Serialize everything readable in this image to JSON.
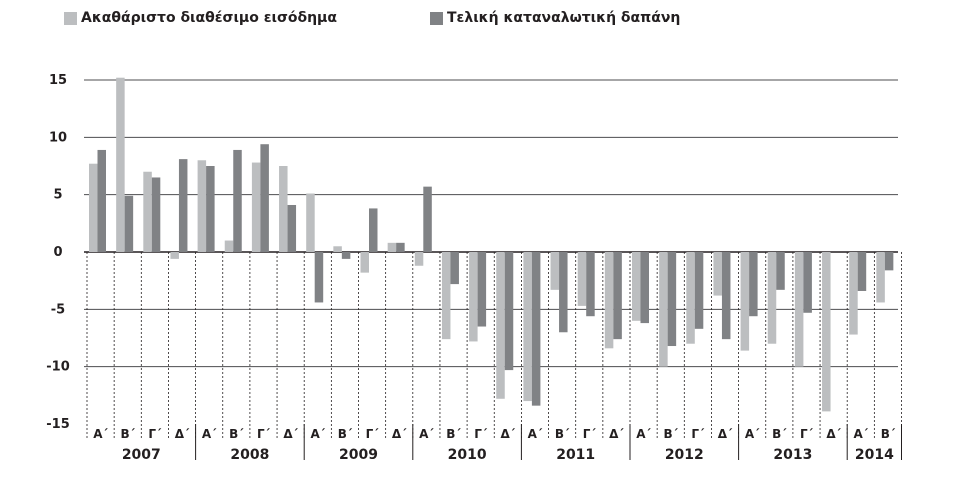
{
  "chart_data": {
    "type": "bar",
    "title": "",
    "xlabel": "",
    "ylabel": "",
    "ylim": [
      -15,
      15
    ],
    "yticks": [
      "15",
      "10",
      "5",
      "0",
      "-5",
      "-10",
      "-15"
    ],
    "grid": true,
    "legend_position": "top-left",
    "quarter_labels": [
      "Α΄",
      "Β΄",
      "Γ΄",
      "Δ΄"
    ],
    "years": [
      "2007",
      "2008",
      "2009",
      "2010",
      "2011",
      "2012",
      "2013",
      "2014"
    ],
    "quarters_per_year": [
      4,
      4,
      4,
      4,
      4,
      4,
      4,
      2
    ],
    "series": [
      {
        "name": "Ακαθάριστο διαθέσιμο εισόδημα",
        "color": "#bcbec0",
        "values": [
          7.7,
          15.2,
          7.0,
          -0.6,
          8.0,
          1.0,
          7.8,
          7.5,
          5.1,
          0.5,
          -1.8,
          0.8,
          -1.2,
          -7.6,
          -7.8,
          -12.8,
          -13.0,
          -3.3,
          -4.7,
          -8.4,
          -6.0,
          -10.0,
          -8.0,
          -3.8,
          -8.6,
          -8.0,
          -10.0,
          -13.9,
          -7.2,
          -4.4
        ]
      },
      {
        "name": "Τελική καταναλωτική δαπάνη",
        "color": "#808285",
        "values": [
          8.9,
          4.9,
          6.5,
          8.1,
          7.5,
          8.9,
          9.4,
          4.1,
          -4.4,
          -0.6,
          3.8,
          0.8,
          5.7,
          -2.8,
          -6.5,
          -10.3,
          -13.4,
          -7.0,
          -5.6,
          -7.6,
          -6.2,
          -8.2,
          -6.7,
          -7.6,
          -5.6,
          -3.3,
          -5.3,
          0.0,
          -3.4,
          -1.6
        ]
      }
    ]
  }
}
